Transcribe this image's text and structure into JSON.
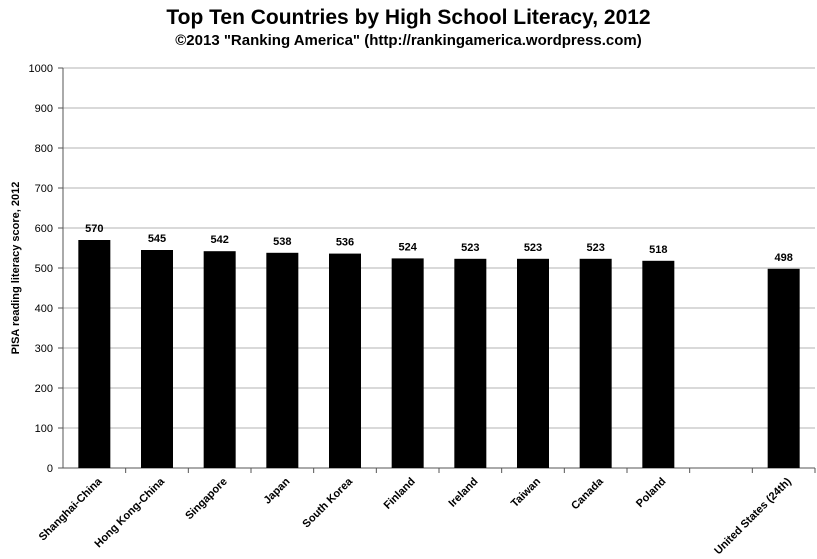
{
  "chart_data": {
    "type": "bar",
    "title": "Top Ten Countries by High School Literacy, 2012",
    "subtitle": "©2013 \"Ranking America\" (http://rankingamerica.wordpress.com)",
    "xlabel": "",
    "ylabel": "PISA reading literacy score, 2012",
    "ylim": [
      0,
      1000
    ],
    "yticks": [
      0,
      100,
      200,
      300,
      400,
      500,
      600,
      700,
      800,
      900,
      1000
    ],
    "grid": true,
    "bar_color": "#000000",
    "categories": [
      "Shanghai-China",
      "Hong Kong-China",
      "Singapore",
      "Japan",
      "South Korea",
      "Finland",
      "Ireland",
      "Taiwan",
      "Canada",
      "Poland",
      "",
      "United States (24th)"
    ],
    "values": [
      570,
      545,
      542,
      538,
      536,
      524,
      523,
      523,
      523,
      518,
      null,
      498
    ]
  }
}
